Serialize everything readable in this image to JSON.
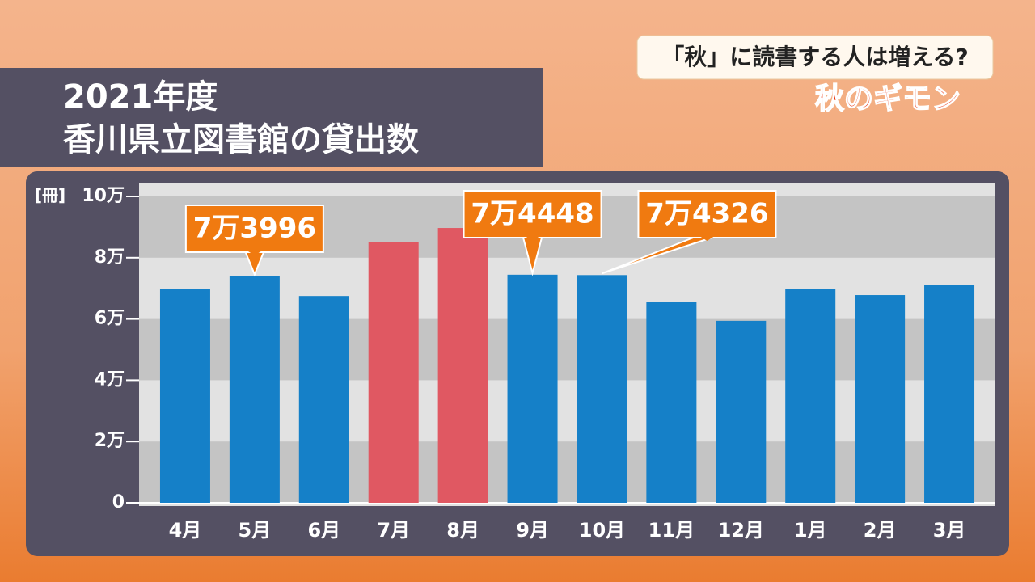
{
  "chart_data": {
    "type": "bar",
    "title": "2021年度",
    "subtitle": "香川県立図書館の貸出数",
    "corner_question": "「秋」に読書する人は増える?",
    "corner_series": "秋のギモン",
    "y_unit": "[冊]",
    "categories": [
      "4月",
      "5月",
      "6月",
      "7月",
      "8月",
      "9月",
      "10月",
      "11月",
      "12月",
      "1月",
      "2月",
      "3月"
    ],
    "values": [
      69700,
      73996,
      67500,
      85200,
      89700,
      74448,
      74326,
      65700,
      59400,
      69700,
      67800,
      71000
    ],
    "value_labels": [
      null,
      "7万3996",
      null,
      null,
      null,
      "7万4448",
      "7万4326",
      null,
      null,
      null,
      null,
      null
    ],
    "colors": [
      "#1580c8",
      "#1580c8",
      "#1580c8",
      "#e05862",
      "#e05862",
      "#1580c8",
      "#1580c8",
      "#1580c8",
      "#1580c8",
      "#1580c8",
      "#1580c8",
      "#1580c8"
    ],
    "label_color": "#f07a10",
    "ylim": [
      0,
      100000
    ],
    "yticks": [
      0,
      {
        "value": 20000,
        "label": "2万"
      },
      {
        "value": 40000,
        "label": "4万"
      },
      {
        "value": 60000,
        "label": "6万"
      },
      {
        "value": 80000,
        "label": "8万"
      },
      {
        "value": 100000,
        "label": "10万"
      }
    ],
    "grid": true
  }
}
